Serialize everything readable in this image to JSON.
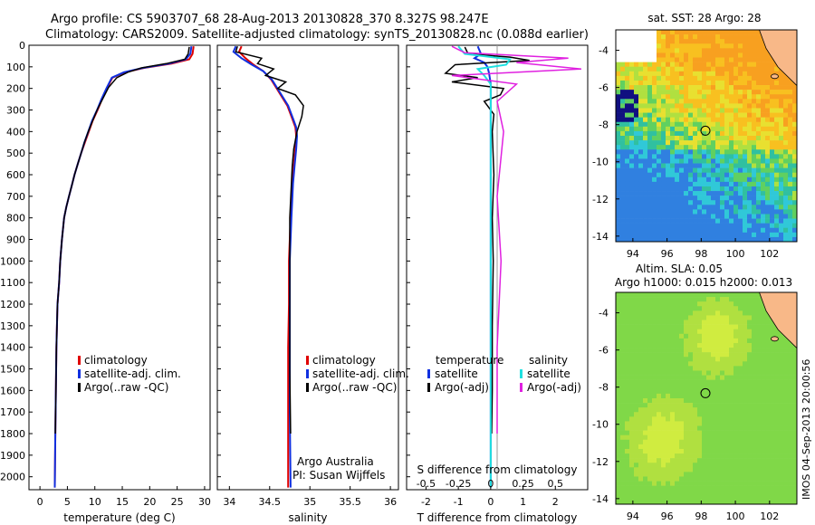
{
  "header": {
    "line1": "Argo profile: CS 5903707_68 28-Aug-2013 20130828_370 8.327S 98.247E",
    "line2": "Climatology: CARS2009. Satellite-adjusted climatology: synTS_20130828.nc (0.088d earlier)"
  },
  "side_text": "IMOS 04-Sep-2013 20:00:56",
  "colors": {
    "climatology": "#e00000",
    "satellite": "#1030e0",
    "argo": "#000000",
    "argo_adj_s": "#e020e0",
    "sat_s": "#20e0e0"
  },
  "chart_data": [
    {
      "id": "temperature",
      "type": "line",
      "xlabel": "temperature (deg C)",
      "ylabel": "",
      "xlim": [
        -2,
        31
      ],
      "ylim": [
        2060,
        0
      ],
      "xticks": [
        "0",
        "5",
        "10",
        "15",
        "20",
        "25",
        "30"
      ],
      "xtick_values": [
        0,
        5,
        10,
        15,
        20,
        25,
        30
      ],
      "yticks": [
        "0",
        "100",
        "200",
        "300",
        "400",
        "500",
        "600",
        "700",
        "800",
        "900",
        "1000",
        "1100",
        "1200",
        "1300",
        "1400",
        "1500",
        "1600",
        "1700",
        "1800",
        "1900",
        "2000"
      ],
      "ytick_values": [
        0,
        100,
        200,
        300,
        400,
        500,
        600,
        700,
        800,
        900,
        1000,
        1100,
        1200,
        1300,
        1400,
        1500,
        1600,
        1700,
        1800,
        1900,
        2000
      ],
      "legend": [
        "climatology",
        "satellite-adj. clim.",
        "Argo(..raw -QC)"
      ],
      "series": [
        {
          "name": "climatology",
          "color": "#e00000",
          "x": [
            28.0,
            27.8,
            27.2,
            24,
            19,
            15.5,
            13.2,
            12.2,
            11.3,
            10.5,
            9.6,
            8.9,
            8.2,
            7.5,
            6.9,
            6.3,
            5.8,
            5.3,
            4.8,
            4.4,
            4.0,
            3.7,
            3.5,
            3.2,
            3.0,
            2.9,
            2.8,
            2.7
          ],
          "y": [
            5,
            40,
            65,
            85,
            105,
            125,
            150,
            200,
            250,
            300,
            350,
            400,
            450,
            500,
            550,
            600,
            650,
            700,
            750,
            800,
            900,
            1000,
            1100,
            1200,
            1400,
            1600,
            1800,
            2050
          ]
        },
        {
          "name": "satellite-adj. clim.",
          "color": "#1030e0",
          "x": [
            27.6,
            27.4,
            26.6,
            23.5,
            18.8,
            15.3,
            13.1,
            12.1,
            11.2,
            10.4,
            9.5,
            8.8,
            8.1,
            7.5,
            6.9,
            6.3,
            5.8,
            5.3,
            4.8,
            4.4,
            4.0,
            3.7,
            3.5,
            3.2,
            3.0,
            2.9,
            2.8,
            2.7
          ],
          "y": [
            5,
            40,
            65,
            85,
            105,
            125,
            150,
            200,
            250,
            300,
            350,
            400,
            450,
            500,
            550,
            600,
            650,
            700,
            750,
            800,
            900,
            1000,
            1100,
            1200,
            1400,
            1600,
            1800,
            2050
          ]
        },
        {
          "name": "Argo(..raw -QC)",
          "color": "#000000",
          "x": [
            27.2,
            27.0,
            26.4,
            23,
            18.5,
            16.0,
            14.0,
            12.5,
            11.4,
            10.4,
            9.6,
            8.8,
            8.1,
            7.5,
            6.9,
            6.3,
            5.8,
            5.3,
            4.8,
            4.4,
            4.0,
            3.7,
            3.5,
            3.2,
            3.0,
            2.9,
            2.8
          ],
          "y": [
            8,
            40,
            65,
            85,
            105,
            125,
            150,
            195,
            250,
            300,
            350,
            400,
            450,
            500,
            550,
            600,
            650,
            700,
            750,
            800,
            900,
            1000,
            1100,
            1200,
            1400,
            1600,
            1800
          ]
        }
      ]
    },
    {
      "id": "salinity",
      "type": "line",
      "xlabel": "salinity",
      "xlim": [
        33.85,
        36.1
      ],
      "ylim": [
        2060,
        0
      ],
      "xticks": [
        "34",
        "34.5",
        "35",
        "35.5",
        "36"
      ],
      "xtick_values": [
        34,
        34.5,
        35,
        35.5,
        36
      ],
      "legend": [
        "climatology",
        "satellite-adj. clim.",
        "Argo(..raw -QC)"
      ],
      "annotations": [
        "Argo Australia",
        "PI: Susan Wijffels"
      ],
      "series": [
        {
          "name": "climatology",
          "color": "#e00000",
          "x": [
            34.15,
            34.12,
            34.2,
            34.3,
            34.42,
            34.52,
            34.62,
            34.72,
            34.78,
            34.82,
            34.83,
            34.82,
            34.8,
            34.78,
            34.77,
            34.76,
            34.75,
            34.74,
            34.74,
            34.73,
            34.73,
            34.73
          ],
          "y": [
            5,
            30,
            60,
            90,
            120,
            160,
            220,
            280,
            340,
            380,
            420,
            480,
            560,
            640,
            720,
            800,
            900,
            1000,
            1200,
            1400,
            1700,
            2050
          ]
        },
        {
          "name": "satellite-adj. clim.",
          "color": "#1030e0",
          "x": [
            34.08,
            34.05,
            34.15,
            34.28,
            34.42,
            34.53,
            34.63,
            34.73,
            34.79,
            34.83,
            34.84,
            34.83,
            34.81,
            34.79,
            34.78,
            34.77,
            34.76,
            34.75,
            34.75,
            34.75,
            34.75,
            34.76
          ],
          "y": [
            5,
            30,
            60,
            90,
            120,
            160,
            220,
            280,
            340,
            380,
            420,
            480,
            560,
            640,
            720,
            800,
            900,
            1000,
            1200,
            1400,
            1700,
            2050
          ]
        },
        {
          "name": "Argo(..raw -QC)",
          "color": "#000000",
          "x": [
            34.1,
            34.08,
            34.4,
            34.35,
            34.55,
            34.45,
            34.7,
            34.6,
            34.82,
            34.92,
            34.9,
            34.84,
            34.8,
            34.78,
            34.77,
            34.76,
            34.75,
            34.75,
            34.75,
            34.75,
            34.76
          ],
          "y": [
            5,
            30,
            60,
            85,
            110,
            140,
            170,
            200,
            230,
            280,
            330,
            400,
            480,
            560,
            640,
            720,
            800,
            1000,
            1200,
            1500,
            1800
          ]
        }
      ]
    },
    {
      "id": "difference",
      "type": "line",
      "xlabel": "T difference from climatology",
      "xlabel_top": "S difference from climatology",
      "xlim": [
        -2.6,
        3.0
      ],
      "ylim": [
        2060,
        0
      ],
      "xticks": [
        "-2",
        "-1",
        "0",
        "1",
        "2"
      ],
      "xtick_values": [
        -2,
        -1,
        0,
        1,
        2
      ],
      "xticks_s": [
        "-0.5",
        "-0.25",
        "0",
        "0.25",
        "0.5"
      ],
      "xtick_values_s": [
        -0.5,
        -0.25,
        0,
        0.25,
        0.5
      ],
      "legend_left_title": "temperature",
      "legend_right_title": "salinity",
      "legend": [
        "satellite",
        "Argo(-adj)",
        "satellite",
        "Argo(-adj)"
      ],
      "series": [
        {
          "name": "T satellite",
          "color": "#1030e0",
          "x": [
            -0.4,
            -0.3,
            -0.5,
            -0.2,
            -0.1,
            -0.05,
            0,
            0,
            0,
            0,
            0
          ],
          "y": [
            5,
            40,
            60,
            80,
            100,
            130,
            180,
            300,
            600,
            1200,
            2050
          ]
        },
        {
          "name": "T Argo(-adj)",
          "color": "#000000",
          "x": [
            -0.8,
            -0.7,
            0.6,
            1.2,
            -1.1,
            -1.4,
            -0.4,
            -1.2,
            0.4,
            0.3,
            -0.2,
            0.1,
            0.05,
            0.1,
            0.05,
            0.08,
            0.05,
            0.05,
            0.03
          ],
          "y": [
            8,
            40,
            55,
            70,
            90,
            130,
            150,
            170,
            200,
            230,
            260,
            320,
            400,
            600,
            800,
            1000,
            1300,
            1600,
            1800
          ]
        },
        {
          "name": "S satellite",
          "color": "#20e0e0",
          "x": [
            -0.25,
            -0.2,
            0.15,
            0.12,
            -0.1,
            -0.05,
            0,
            0,
            0,
            0
          ],
          "y": [
            5,
            40,
            65,
            90,
            110,
            140,
            180,
            400,
            1000,
            2050
          ]
        },
        {
          "name": "S Argo(-adj)",
          "color": "#e020e0",
          "x": [
            -0.3,
            -0.2,
            0.6,
            0.2,
            0.7,
            -0.3,
            0.2,
            0.05,
            0.1,
            0.05,
            0.08,
            0.05,
            0.05
          ],
          "y": [
            5,
            35,
            60,
            80,
            110,
            140,
            180,
            260,
            400,
            700,
            1000,
            1400,
            1800
          ]
        }
      ]
    },
    {
      "id": "sst_map",
      "type": "heatmap",
      "title": "sat. SST: 28 Argo: 28",
      "xlim": [
        93.0,
        103.6
      ],
      "ylim": [
        -14.3,
        -2.9
      ],
      "xticks": [
        "94",
        "96",
        "98",
        "100",
        "102"
      ],
      "xtick_values": [
        94,
        96,
        98,
        100,
        102
      ],
      "yticks": [
        "-4",
        "-6",
        "-8",
        "-10",
        "-12",
        "-14"
      ],
      "ytick_values": [
        -4,
        -6,
        -8,
        -10,
        -12,
        -14
      ],
      "marker": {
        "lon": 98.247,
        "lat": -8.327
      }
    },
    {
      "id": "sla_map",
      "type": "heatmap",
      "title": "Altim. SLA: 0.05",
      "subtitle": "Argo h1000: 0.015 h2000: 0.013",
      "xlim": [
        93.0,
        103.6
      ],
      "ylim": [
        -14.3,
        -2.9
      ],
      "xticks": [
        "94",
        "96",
        "98",
        "100",
        "102"
      ],
      "xtick_values": [
        94,
        96,
        98,
        100,
        102
      ],
      "yticks": [
        "-4",
        "-6",
        "-8",
        "-10",
        "-12",
        "-14"
      ],
      "ytick_values": [
        -4,
        -6,
        -8,
        -10,
        -12,
        -14
      ],
      "marker": {
        "lon": 98.247,
        "lat": -8.327
      }
    }
  ]
}
